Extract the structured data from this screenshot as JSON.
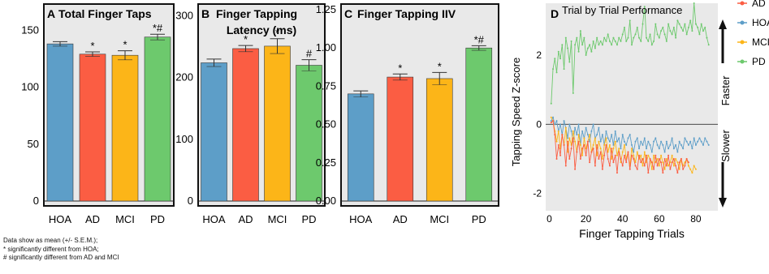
{
  "colors": {
    "HOA": "#5d9ec8",
    "AD": "#fb5d43",
    "MCI": "#fcb518",
    "PD": "#6dc96d",
    "panel_bg": "#e9e9e9",
    "frame": "#111111"
  },
  "chart_data": [
    {
      "panel": "A",
      "type": "bar",
      "title": "Total Finger Taps",
      "categories": [
        "HOA",
        "AD",
        "MCI",
        "PD"
      ],
      "values": [
        138,
        129,
        128,
        144
      ],
      "sem": [
        2,
        2,
        4,
        2.5
      ],
      "annotations": [
        "",
        "*",
        "*",
        "*#"
      ],
      "yticks": [
        "0",
        "50",
        "100",
        "150"
      ],
      "ylim": [
        0,
        168
      ],
      "grid": false
    },
    {
      "panel": "B",
      "type": "bar",
      "title": "Finger Tapping",
      "subtitle": "Latency (ms)",
      "categories": [
        "HOA",
        "AD",
        "MCI",
        "PD"
      ],
      "values": [
        224,
        247,
        251,
        220
      ],
      "sem": [
        6,
        5,
        12,
        9
      ],
      "annotations": [
        "",
        "*",
        "*",
        "#"
      ],
      "yticks": [
        "0",
        "100",
        "200",
        "300"
      ],
      "ylim": [
        0,
        310
      ],
      "grid": false
    },
    {
      "panel": "C",
      "type": "bar",
      "title": "Finger Tapping IIV",
      "categories": [
        "HOA",
        "AD",
        "MCI",
        "PD"
      ],
      "values": [
        0.7,
        0.81,
        0.8,
        1.0
      ],
      "sem": [
        0.02,
        0.02,
        0.04,
        0.015
      ],
      "annotations": [
        "",
        "*",
        "*",
        "*#"
      ],
      "yticks": [
        "0.00",
        "0.25",
        "0.50",
        "0.75",
        "1.00",
        "1.25"
      ],
      "ylim": [
        0,
        1.25
      ],
      "grid": false
    },
    {
      "panel": "D",
      "type": "line",
      "title": "Trial by Trial Performance",
      "xlabel": "Finger Tapping Trials",
      "ylabel": "Tapping Speed Z-score",
      "xticks": [
        "0",
        "20",
        "40",
        "60",
        "80"
      ],
      "yticks": [
        "-2",
        "0",
        "2"
      ],
      "xlim": [
        -2,
        92
      ],
      "ylim": [
        -2.5,
        3.5
      ],
      "grid": false,
      "legend": "right",
      "right_labels": {
        "faster": "Faster",
        "slower": "Slower"
      },
      "series": [
        {
          "name": "AD",
          "values": [
            0.05,
            0.1,
            -0.3,
            -1.0,
            -0.6,
            -0.9,
            -0.3,
            -0.6,
            -1.2,
            -0.5,
            -1.0,
            -0.7,
            -0.4,
            -1.3,
            -0.8,
            -0.5,
            -1.0,
            -0.7,
            -0.6,
            -0.9,
            -0.5,
            -1.1,
            -0.8,
            -0.7,
            -1.2,
            -0.6,
            -1.0,
            -0.8,
            -1.3,
            -0.9,
            -0.6,
            -1.0,
            -1.2,
            -0.7,
            -1.1,
            -0.9,
            -1.4,
            -0.8,
            -1.0,
            -1.2,
            -0.9,
            -1.1,
            -0.8,
            -1.3,
            -0.9,
            -1.0,
            -1.2,
            -1.3,
            -0.9,
            -1.1,
            -1.0,
            -1.2,
            -0.9,
            -1.4,
            -1.0,
            -1.1,
            -1.3,
            -0.9,
            -1.2,
            -1.0,
            -1.1,
            -1.4,
            -1.0,
            -1.2,
            -0.9,
            -1.3,
            -1.1,
            -1.0,
            -1.2,
            -1.4,
            -1.1,
            -1.0,
            -1.3,
            -1.2,
            -1.0,
            -1.1
          ]
        },
        {
          "name": "HOA",
          "values": [
            0.1,
            0.2,
            0.0,
            0.1,
            -0.2,
            0.0,
            -0.3,
            0.1,
            -0.1,
            -0.4,
            0.0,
            -0.2,
            -0.5,
            -0.1,
            -0.3,
            0.0,
            -0.6,
            -0.2,
            -0.4,
            -0.1,
            -0.3,
            -0.5,
            -0.2,
            0.0,
            -0.4,
            -0.3,
            -0.1,
            -0.5,
            -0.3,
            -0.6,
            -0.2,
            -0.4,
            -0.5,
            -0.3,
            -0.6,
            -0.2,
            -0.5,
            -0.4,
            -0.7,
            -0.3,
            -0.5,
            -0.6,
            -0.4,
            -0.3,
            -0.6,
            -0.8,
            -0.5,
            -0.4,
            -0.7,
            -0.5,
            -0.6,
            -0.4,
            -0.7,
            -0.5,
            -0.6,
            -0.8,
            -0.5,
            -0.4,
            -0.6,
            -0.7,
            -0.5,
            -0.6,
            -0.8,
            -0.5,
            -0.7,
            -0.6,
            -0.4,
            -0.7,
            -0.6,
            -0.8,
            -0.5,
            -0.6,
            -0.7,
            -0.4,
            -0.5,
            -0.6,
            -0.5,
            -0.7,
            -0.4,
            -0.6,
            -0.5,
            -0.4,
            -0.5,
            -0.6,
            -0.4,
            -0.5,
            -0.6
          ]
        },
        {
          "name": "MCI",
          "values": [
            0.2,
            0.1,
            -0.2,
            -0.5,
            -0.2,
            -0.7,
            -0.3,
            -0.6,
            -0.1,
            -0.8,
            -0.4,
            -0.6,
            -0.2,
            -0.5,
            -0.8,
            -0.3,
            -0.6,
            -0.9,
            -0.4,
            -0.7,
            -0.5,
            -0.3,
            -0.8,
            -0.6,
            -0.4,
            -0.9,
            -0.5,
            -0.7,
            -1.0,
            -0.6,
            -0.4,
            -0.8,
            -0.6,
            -1.0,
            -0.7,
            -0.5,
            -0.9,
            -0.7,
            -1.1,
            -0.8,
            -0.6,
            -1.0,
            -0.8,
            -1.2,
            -0.7,
            -0.9,
            -1.1,
            -0.8,
            -1.0,
            -0.9,
            -1.2,
            -0.8,
            -1.1,
            -0.9,
            -1.0,
            -1.3,
            -0.9,
            -1.1,
            -1.0,
            -1.2,
            -0.9,
            -1.1,
            -1.3,
            -1.0,
            -1.2,
            -1.1,
            -0.9,
            -1.2,
            -1.0,
            -1.1,
            -1.3,
            -1.0,
            -1.2,
            -1.1,
            -1.0,
            -1.2,
            -1.3,
            -1.4,
            -1.2,
            -1.3
          ]
        },
        {
          "name": "PD",
          "values": [
            0.6,
            1.6,
            1.9,
            1.5,
            2.1,
            1.9,
            2.3,
            1.6,
            2.5,
            2.2,
            1.8,
            2.4,
            0.9,
            2.3,
            2.5,
            2.1,
            2.7,
            2.3,
            2.5,
            2.0,
            2.2,
            2.3,
            2.1,
            2.4,
            2.2,
            2.5,
            2.3,
            2.4,
            2.3,
            2.5,
            2.4,
            2.6,
            2.4,
            2.3,
            2.5,
            2.4,
            2.3,
            2.5,
            2.4,
            2.6,
            2.8,
            2.4,
            2.5,
            3.0,
            2.3,
            2.5,
            2.6,
            2.8,
            2.5,
            2.4,
            2.9,
            3.4,
            2.5,
            2.4,
            2.6,
            2.3,
            2.4,
            2.9,
            2.6,
            2.5,
            2.7,
            2.8,
            2.6,
            2.4,
            2.9,
            2.7,
            2.6,
            2.8,
            2.5,
            3.0,
            2.9,
            2.8,
            2.7,
            2.9,
            2.6,
            2.8,
            3.0,
            2.7,
            3.5,
            2.9,
            2.8,
            2.6,
            2.9,
            2.7,
            2.8,
            2.5,
            2.3
          ]
        }
      ]
    }
  ],
  "notes": [
    "Data show as mean (+/- S.E.M.);",
    "* significantly different from HOA;",
    "# significantly different from AD and MCI"
  ]
}
